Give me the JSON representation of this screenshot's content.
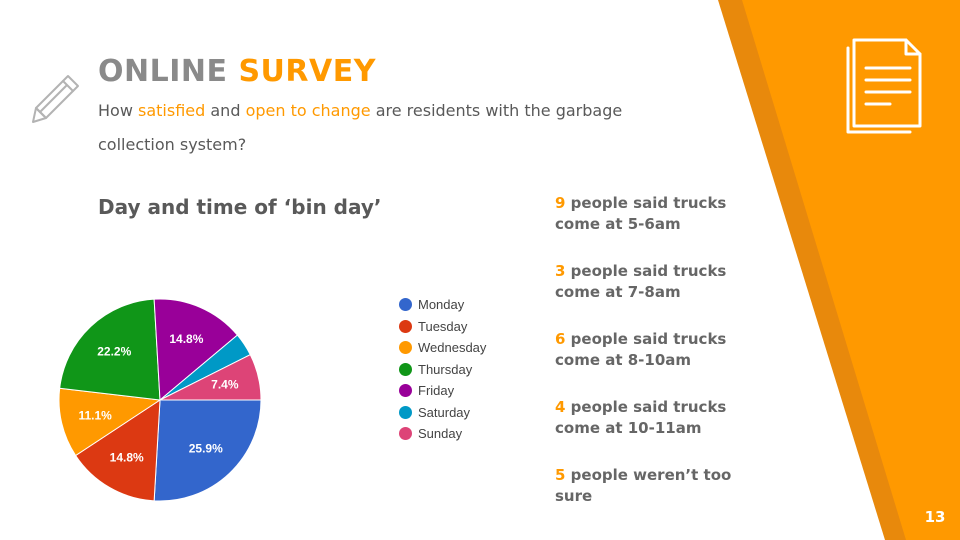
{
  "slide": {
    "title_part1": "ONLINE ",
    "title_part2": "SURVEY",
    "subtitle_parts": [
      "How ",
      "satisfied",
      " and ",
      "open to change",
      " are residents with the garbage collection system?"
    ],
    "page_number": "13"
  },
  "colors": {
    "accent": "#ff9900",
    "accent_dark": "#e8890c",
    "title_gray": "#8a8a8a",
    "text_gray": "#595959"
  },
  "icons": {
    "left": "pencil-icon",
    "top_right": "document-icon"
  },
  "chart_title": "Day and time of ‘bin day’",
  "chart_data": {
    "type": "pie",
    "title": "",
    "legend_position": "right",
    "slices": [
      {
        "name": "Monday",
        "value": 25.9,
        "label": "25.9%",
        "color": "#3366cc"
      },
      {
        "name": "Tuesday",
        "value": 14.8,
        "label": "14.8%",
        "color": "#dc3912"
      },
      {
        "name": "Wednesday",
        "value": 11.1,
        "label": "11.1%",
        "color": "#ff9900"
      },
      {
        "name": "Thursday",
        "value": 22.2,
        "label": "22.2%",
        "color": "#109618"
      },
      {
        "name": "Friday",
        "value": 14.8,
        "label": "14.8%",
        "color": "#990099"
      },
      {
        "name": "Saturday",
        "value": 3.7,
        "label": "",
        "color": "#0099c6"
      },
      {
        "name": "Sunday",
        "value": 7.4,
        "label": "7.4%",
        "color": "#dd4477"
      }
    ]
  },
  "stats": [
    {
      "number": "9",
      "text": " people said trucks come at 5-6am"
    },
    {
      "number": "3",
      "text": " people said trucks come at 7-8am"
    },
    {
      "number": "6",
      "text": " people said trucks come at 8-10am"
    },
    {
      "number": "4",
      "text": " people said trucks come at 10-11am"
    },
    {
      "number": "5",
      "text": " people weren’t too sure"
    }
  ]
}
